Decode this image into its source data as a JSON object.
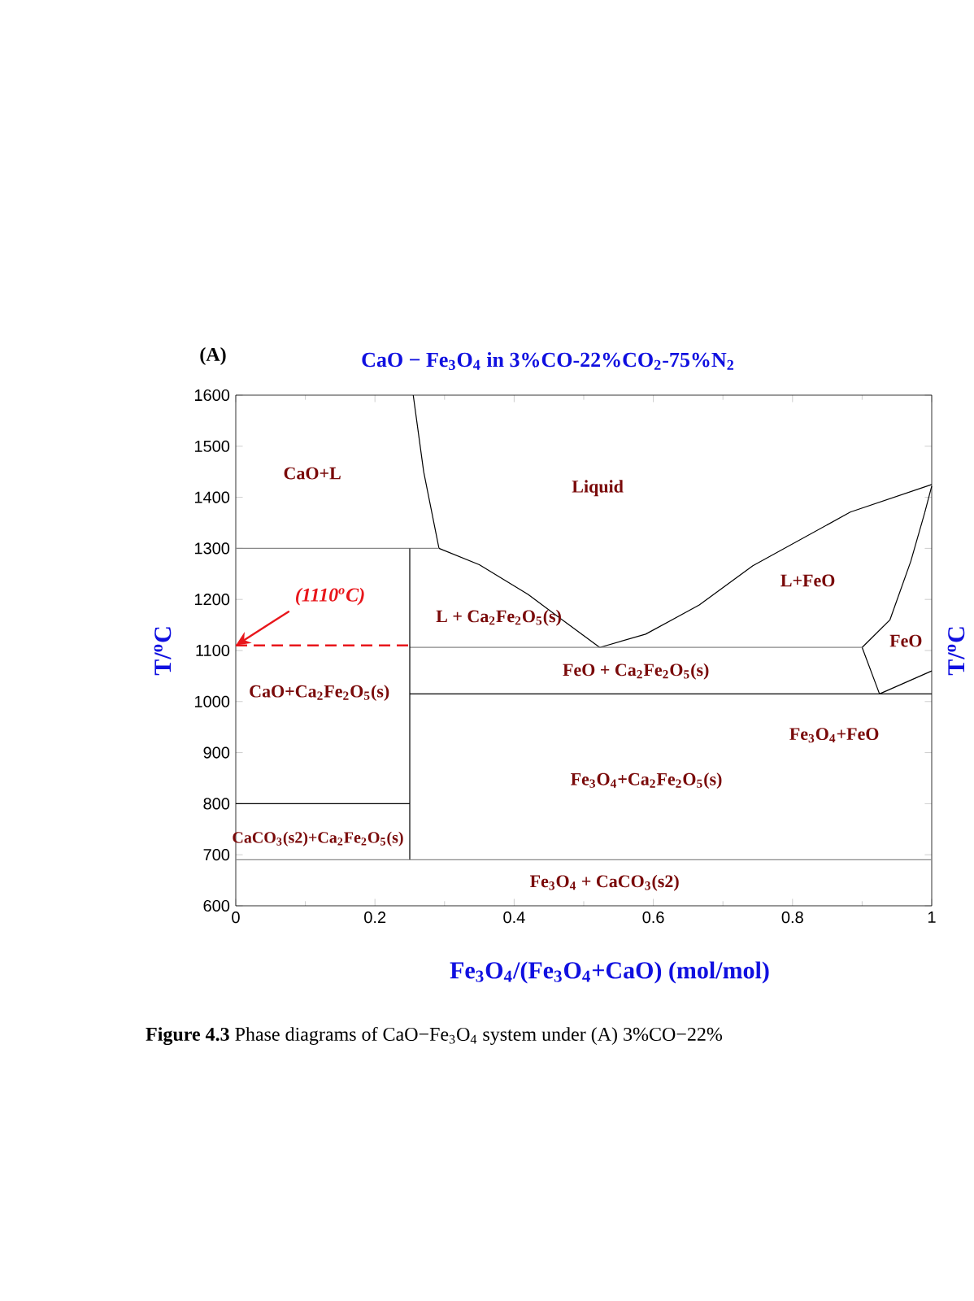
{
  "chart_data": {
    "type": "line",
    "title": "CaO − Fe$_{3}$O$_{4}$   in 3%CO-22%CO$_{2}$-75%N$_{2}$",
    "xlabel": "Fe$_{3}$O$_{4}$/(Fe$_{3}$O$_{4}$+CaO)   (mol/mol)",
    "ylabel": "T/$^{o}$C",
    "y2label": "T/$^{o}$C",
    "xlim": [
      0,
      1
    ],
    "ylim": [
      600,
      1600
    ],
    "xticks": [
      0,
      0.2,
      0.4,
      0.6,
      0.8,
      1
    ],
    "yticks": [
      600,
      700,
      800,
      900,
      1000,
      1100,
      1200,
      1300,
      1400,
      1500,
      1600
    ],
    "series": [
      {
        "color": "#000000",
        "x": [
          0.255,
          0.27,
          0.292
        ],
        "values": [
          1600,
          1450,
          1300
        ]
      },
      {
        "color": "#000000",
        "x": [
          0.292,
          0.35,
          0.42,
          0.479,
          0.523
        ],
        "values": [
          1300,
          1268,
          1210,
          1150,
          1106
        ]
      },
      {
        "color": "#000000",
        "x": [
          0.523,
          0.589,
          0.666,
          0.743,
          0.883,
          1.0
        ],
        "values": [
          1106,
          1132,
          1189,
          1266,
          1371,
          1425
        ]
      },
      {
        "color": "#000000",
        "x": [
          0.9,
          0.94,
          0.97,
          0.99,
          1.0
        ],
        "values": [
          1106,
          1160,
          1275,
          1370,
          1422
        ]
      },
      {
        "color": "#000000",
        "x": [
          0.9,
          0.925,
          1.0
        ],
        "values": [
          1106,
          1015,
          1060
        ]
      },
      {
        "color": "#888888",
        "x": [
          0,
          0.292
        ],
        "values": [
          1300,
          1300
        ]
      },
      {
        "color": "#888888",
        "x": [
          0.25,
          0.9
        ],
        "values": [
          1106,
          1106
        ]
      },
      {
        "color": "#000000",
        "x": [
          0.25,
          0.25
        ],
        "values": [
          1300,
          690
        ]
      },
      {
        "color": "#000000",
        "x": [
          0.25,
          1.0
        ],
        "values": [
          1015,
          1015
        ]
      },
      {
        "color": "#000000",
        "x": [
          0,
          0.25
        ],
        "values": [
          800,
          800
        ]
      },
      {
        "color": "#888888",
        "x": [
          0,
          1
        ],
        "values": [
          690,
          690
        ]
      },
      {
        "name": "(1110$^{o}$C)",
        "color": "#e8161b",
        "line_style": "dashed",
        "x": [
          0,
          0.25
        ],
        "values": [
          1110,
          1110
        ]
      }
    ],
    "annotations": [
      "(A)",
      "**Figure 4.3** Phase diagrams of CaO−Fe$_{3}$O$_{4}$ system under (A) 3%CO−22%",
      "CaO+L",
      "Liquid",
      "L + Ca$_{2}$Fe$_{2}$O$_{5}$(s)",
      "L+FeO",
      "FeO",
      "FeO + Ca$_{2}$Fe$_{2}$O$_{5}$(s)",
      "CaO+Ca$_{2}$Fe$_{2}$O$_{5}$(s)",
      "Fe$_{3}$O$_{4}$+FeO",
      "Fe$_{3}$O$_{4}$+Ca$_{2}$Fe$_{2}$O$_{5}$(s)",
      "CaCO$_{3}$(s2)+Ca$_{2}$Fe$_{2}$O$_{5}$(s)",
      "Fe$_{3}$O$_{4}$ + CaCO$_{3}$(s2)"
    ]
  }
}
